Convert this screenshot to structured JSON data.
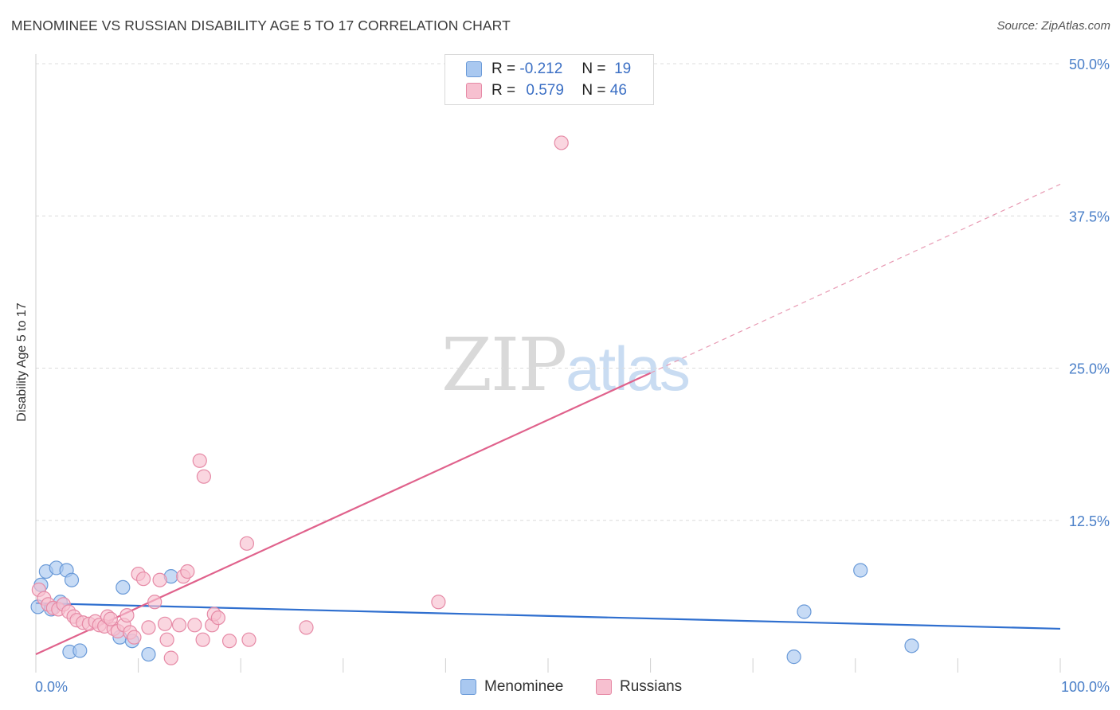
{
  "header": {
    "title": "MENOMINEE VS RUSSIAN DISABILITY AGE 5 TO 17 CORRELATION CHART",
    "source": "Source: ZipAtlas.com"
  },
  "watermark": {
    "zip": "ZIP",
    "atlas": "atlas"
  },
  "legend": {
    "rows": [
      {
        "r_label": "R =",
        "r_value": "-0.212",
        "n_label": "N =",
        "n_value": "19",
        "color": "#a9c8f0",
        "stroke": "#6a9ad8"
      },
      {
        "r_label": "R =",
        "r_value": "0.579",
        "n_label": "N =",
        "n_value": "46",
        "color": "#f7c0d0",
        "stroke": "#e68aa6"
      }
    ]
  },
  "bottom_legend": [
    {
      "label": "Menominee",
      "color": "#a9c8f0",
      "stroke": "#6a9ad8"
    },
    {
      "label": "Russians",
      "color": "#f7c0d0",
      "stroke": "#e68aa6"
    }
  ],
  "chart_data": {
    "type": "scatter",
    "title": "MENOMINEE VS RUSSIAN DISABILITY AGE 5 TO 17 CORRELATION CHART",
    "xlabel": "",
    "ylabel": "Disability Age 5 to 17",
    "xlim": [
      0,
      100
    ],
    "ylim": [
      0,
      50
    ],
    "x_tick_labels": [
      "0.0%",
      "100.0%"
    ],
    "y_ticks": [
      12.5,
      25.0,
      37.5,
      50.0
    ],
    "y_tick_labels": [
      "12.5%",
      "25.0%",
      "37.5%",
      "50.0%"
    ],
    "grid": true,
    "series": [
      {
        "name": "Menominee",
        "color": "#6a9ad8",
        "fill": "#a9c8f0",
        "points": [
          [
            0.2,
            5.4
          ],
          [
            0.5,
            7.2
          ],
          [
            1.0,
            8.3
          ],
          [
            1.5,
            5.2
          ],
          [
            2.0,
            8.6
          ],
          [
            2.4,
            5.8
          ],
          [
            3.0,
            8.4
          ],
          [
            3.5,
            7.6
          ],
          [
            3.3,
            1.7
          ],
          [
            4.3,
            1.8
          ],
          [
            8.5,
            7.0
          ],
          [
            8.2,
            2.9
          ],
          [
            9.4,
            2.6
          ],
          [
            11.0,
            1.5
          ],
          [
            13.2,
            7.9
          ],
          [
            74.0,
            1.3
          ],
          [
            75.0,
            5.0
          ],
          [
            80.5,
            8.4
          ],
          [
            85.5,
            2.2
          ]
        ],
        "trend": {
          "x": [
            0,
            100
          ],
          "y": [
            5.7,
            3.6
          ],
          "dashed": false
        }
      },
      {
        "name": "Russians",
        "color": "#e68aa6",
        "fill": "#f7c0d0",
        "points": [
          [
            0.3,
            6.8
          ],
          [
            0.8,
            6.1
          ],
          [
            1.2,
            5.6
          ],
          [
            1.7,
            5.3
          ],
          [
            2.2,
            5.2
          ],
          [
            2.7,
            5.6
          ],
          [
            3.2,
            5.0
          ],
          [
            3.7,
            4.6
          ],
          [
            4.0,
            4.3
          ],
          [
            4.6,
            4.1
          ],
          [
            5.2,
            4.0
          ],
          [
            5.8,
            4.2
          ],
          [
            6.2,
            3.9
          ],
          [
            6.7,
            3.8
          ],
          [
            7.0,
            4.6
          ],
          [
            7.6,
            3.6
          ],
          [
            7.3,
            4.4
          ],
          [
            8.0,
            3.4
          ],
          [
            8.6,
            3.9
          ],
          [
            8.9,
            4.7
          ],
          [
            9.2,
            3.3
          ],
          [
            9.6,
            2.9
          ],
          [
            10.0,
            8.1
          ],
          [
            10.5,
            7.7
          ],
          [
            11.0,
            3.7
          ],
          [
            11.6,
            5.8
          ],
          [
            12.1,
            7.6
          ],
          [
            12.6,
            4.0
          ],
          [
            12.8,
            2.7
          ],
          [
            13.2,
            1.2
          ],
          [
            14.0,
            3.9
          ],
          [
            14.4,
            7.9
          ],
          [
            14.8,
            8.3
          ],
          [
            15.5,
            3.9
          ],
          [
            16.0,
            17.4
          ],
          [
            16.3,
            2.7
          ],
          [
            16.4,
            16.1
          ],
          [
            17.2,
            3.9
          ],
          [
            17.4,
            4.8
          ],
          [
            17.8,
            4.5
          ],
          [
            18.9,
            2.6
          ],
          [
            20.6,
            10.6
          ],
          [
            20.8,
            2.7
          ],
          [
            26.4,
            3.7
          ],
          [
            39.3,
            5.8
          ],
          [
            51.3,
            43.5
          ]
        ],
        "trend": {
          "x": [
            0,
            60
          ],
          "y": [
            1.5,
            24.6
          ],
          "dashed": false
        },
        "trend_extension": {
          "x": [
            60,
            100
          ],
          "y": [
            24.6,
            40.1
          ],
          "dashed": true
        }
      }
    ]
  }
}
